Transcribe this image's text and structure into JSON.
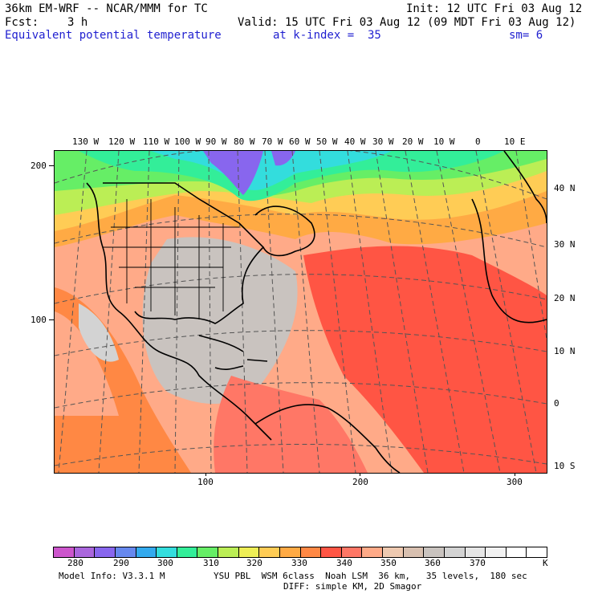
{
  "header": {
    "model_title": "36km EM-WRF -- NCAR/MMM for TC",
    "init": "Init: 12 UTC Fri 03 Aug 12",
    "fcst_label": "Fcst:",
    "fcst_value": "3 h",
    "valid": "Valid: 15 UTC Fri 03 Aug 12 (09 MDT Fri 03 Aug 12)",
    "field_name": "Equivalent potential temperature",
    "level": "at k-index =  35",
    "smoothing": "sm= 6"
  },
  "map": {
    "lon_labels": [
      "130 W",
      "120 W",
      "110 W",
      "100 W",
      "90 W",
      "80 W",
      "70 W",
      "60 W",
      "50 W",
      "40 W",
      "30 W",
      "20 W",
      "10 W",
      "0",
      "10 E"
    ],
    "lat_labels": [
      "40 N",
      "30 N",
      "20 N",
      "10 N",
      "0",
      "10 S"
    ],
    "grid_y_labels": [
      "200",
      "100"
    ],
    "grid_x_labels": [
      "100",
      "200",
      "300"
    ]
  },
  "colorbar": {
    "colors": [
      "#cc55cc",
      "#aa66dd",
      "#8866ee",
      "#6688ee",
      "#33aaee",
      "#33dddd",
      "#33ee99",
      "#66ee66",
      "#bbee55",
      "#eeee55",
      "#ffcc55",
      "#ffaa44",
      "#ff8844",
      "#ff5544",
      "#ff7766",
      "#ffaa88",
      "#eec9b0",
      "#d8c0b0",
      "#c9c3bf",
      "#d3d3d3",
      "#e6e6e6",
      "#f2f2f2",
      "#ffffff",
      "#ffffff"
    ],
    "labels": [
      "280",
      "290",
      "300",
      "310",
      "320",
      "330",
      "340",
      "350",
      "360",
      "370"
    ],
    "unit": "K"
  },
  "footer": {
    "model_info": "Model Info: V3.3.1 M",
    "physics": "YSU PBL  WSM 6class  Noah LSM  36 km,   35 levels,  180 sec",
    "diffusion": "DIFF: simple KM, 2D Smagor"
  }
}
